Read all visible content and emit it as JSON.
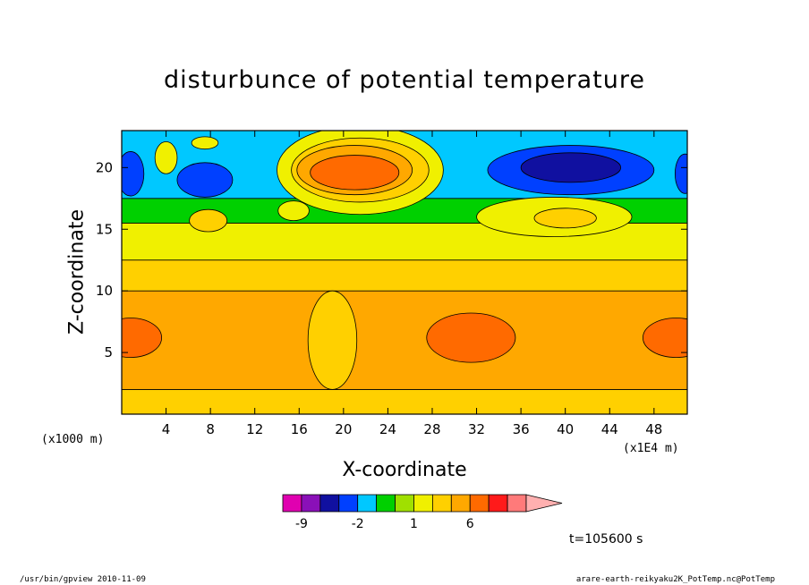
{
  "chart_data": {
    "type": "heatmap",
    "title": "disturbunce of potential temperature",
    "xlabel": "X-coordinate",
    "ylabel": "Z-coordinate",
    "x_unit_label": "(x1000 m)",
    "z_unit_label": "(x1E4 m)",
    "xlim": [
      0,
      51
    ],
    "ylim": [
      0,
      23
    ],
    "x_ticks": [
      4,
      8,
      12,
      16,
      20,
      24,
      28,
      32,
      36,
      40,
      44,
      48
    ],
    "y_ticks": [
      5,
      10,
      15,
      20
    ],
    "colorbar": {
      "tick_labels": [
        "-9",
        "-2",
        "1",
        "6"
      ],
      "colors": [
        "#e000b0",
        "#8a10b8",
        "#1010a0",
        "#0040ff",
        "#00c8ff",
        "#00d000",
        "#a0e000",
        "#f0f000",
        "#ffd000",
        "#ffa800",
        "#ff6a00",
        "#ff1a1a",
        "#ff7a7a",
        "#ffb0b0"
      ],
      "bins": [
        {
          "from": -15,
          "to": -9,
          "color": "#e000b0"
        },
        {
          "from": -9,
          "to": -6,
          "color": "#8a10b8"
        },
        {
          "from": -6,
          "to": -3,
          "color": "#1010a0"
        },
        {
          "from": -3,
          "to": -2,
          "color": "#0040ff"
        },
        {
          "from": -2,
          "to": -1,
          "color": "#00c8ff"
        },
        {
          "from": -1,
          "to": 0,
          "color": "#00d000"
        },
        {
          "from": 0,
          "to": 1,
          "color": "#a0e000"
        },
        {
          "from": 1,
          "to": 2,
          "color": "#f0f000"
        },
        {
          "from": 2,
          "to": 3,
          "color": "#ffd000"
        },
        {
          "from": 3,
          "to": 6,
          "color": "#ffa800"
        },
        {
          "from": 6,
          "to": 9,
          "color": "#ff6a00"
        },
        {
          "from": 9,
          "to": 12,
          "color": "#ff1a1a"
        },
        {
          "from": 12,
          "to": 15,
          "color": "#ff7a7a"
        }
      ],
      "extends_above": true
    },
    "field": {
      "base_bands": [
        {
          "z_from": 0.0,
          "z_to": 2.0,
          "level": 2.5
        },
        {
          "z_from": 2.0,
          "z_to": 10.0,
          "level": 4.0
        },
        {
          "z_from": 10.0,
          "z_to": 12.5,
          "level": 2.5
        },
        {
          "z_from": 12.5,
          "z_to": 15.5,
          "level": 1.5
        },
        {
          "z_from": 15.5,
          "z_to": 17.5,
          "level": -0.5
        },
        {
          "z_from": 17.5,
          "z_to": 23.0,
          "level": -1.5
        }
      ],
      "features": [
        {
          "x": 0.8,
          "z": 6.2,
          "rx": 2.8,
          "rz": 1.6,
          "level": 7
        },
        {
          "x": 31.5,
          "z": 6.2,
          "rx": 4.0,
          "rz": 2.0,
          "level": 7
        },
        {
          "x": 50.0,
          "z": 6.2,
          "rx": 3.0,
          "rz": 1.6,
          "level": 7
        },
        {
          "x": 19.0,
          "z": 6.0,
          "rx": 2.2,
          "rz": 4.0,
          "level": 2.5
        },
        {
          "x": 21.5,
          "z": 19.8,
          "rx": 7.5,
          "rz": 3.6,
          "level": 1.5
        },
        {
          "x": 21.5,
          "z": 19.8,
          "rx": 6.2,
          "rz": 2.6,
          "level": 2.5
        },
        {
          "x": 21.0,
          "z": 19.8,
          "rx": 5.2,
          "rz": 2.0,
          "level": 4.5
        },
        {
          "x": 21.0,
          "z": 19.6,
          "rx": 4.0,
          "rz": 1.4,
          "level": 7
        },
        {
          "x": 39.0,
          "z": 16.0,
          "rx": 7.0,
          "rz": 1.6,
          "level": 1.5
        },
        {
          "x": 40.0,
          "z": 15.9,
          "rx": 2.8,
          "rz": 0.8,
          "level": 2.5
        },
        {
          "x": 7.8,
          "z": 15.7,
          "rx": 1.7,
          "rz": 0.9,
          "level": 2.5
        },
        {
          "x": 15.5,
          "z": 16.5,
          "rx": 1.4,
          "rz": 0.8,
          "level": 1.5
        },
        {
          "x": 4.0,
          "z": 20.8,
          "rx": 1.0,
          "rz": 1.3,
          "level": 1.5
        },
        {
          "x": 7.5,
          "z": 22.0,
          "rx": 1.2,
          "rz": 0.5,
          "level": 1.5
        },
        {
          "x": 40.5,
          "z": 19.8,
          "rx": 7.5,
          "rz": 2.0,
          "level": -2.5
        },
        {
          "x": 40.5,
          "z": 20.0,
          "rx": 4.5,
          "rz": 1.2,
          "level": -4
        },
        {
          "x": 7.5,
          "z": 19.0,
          "rx": 2.5,
          "rz": 1.4,
          "level": -2.5
        },
        {
          "x": 0.8,
          "z": 19.5,
          "rx": 1.2,
          "rz": 1.8,
          "level": -2.5
        },
        {
          "x": 50.8,
          "z": 19.5,
          "rx": 0.9,
          "rz": 1.6,
          "level": -2.5
        }
      ]
    }
  },
  "footer": {
    "left": "/usr/bin/gpview  2010-11-09",
    "right": "arare-earth-reikyaku2K_PotTemp.nc@PotTemp"
  },
  "time_label": "t=105600 s"
}
